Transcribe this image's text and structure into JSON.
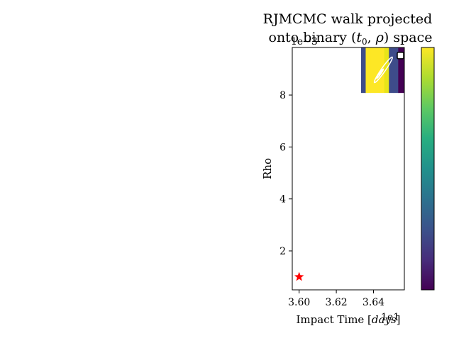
{
  "chart_data": {
    "type": "heatmap",
    "title_line1": "RJMCMC walk projected",
    "title_line2_prefix": "onto binary (",
    "title_line2_t": "t",
    "title_line2_sub": "0",
    "title_line2_mid": ", ",
    "title_line2_rho": "ρ",
    "title_line2_suffix": ") space",
    "xlabel_prefix": "Impact Time [",
    "xlabel_unit": "days",
    "xlabel_suffix": "]",
    "ylabel": "Rho",
    "x_offset_label": "1e1",
    "y_offset_label": "1e−3",
    "xlim": [
      3.5963,
      3.6566
    ],
    "ylim": [
      0.5,
      9.83
    ],
    "x_ticks": [
      3.6,
      3.62,
      3.64
    ],
    "x_tick_labels": [
      "3.60",
      "3.62",
      "3.64"
    ],
    "y_ticks": [
      2,
      4,
      6,
      8
    ],
    "y_tick_labels": [
      "2",
      "4",
      "6",
      "8"
    ],
    "heatmap_cells": [
      {
        "x0": 3.6333,
        "x1": 3.6358,
        "y0": 8.08,
        "y1": 9.83,
        "color": "#3e4c8a"
      },
      {
        "x0": 3.6358,
        "x1": 3.6383,
        "y0": 8.08,
        "y1": 9.83,
        "color": "#fde725"
      },
      {
        "x0": 3.6383,
        "x1": 3.6408,
        "y0": 8.08,
        "y1": 9.83,
        "color": "#fde725"
      },
      {
        "x0": 3.6408,
        "x1": 3.6433,
        "y0": 8.08,
        "y1": 9.83,
        "color": "#fde725"
      },
      {
        "x0": 3.6433,
        "x1": 3.6458,
        "y0": 8.08,
        "y1": 9.83,
        "color": "#fde725"
      },
      {
        "x0": 3.6458,
        "x1": 3.6483,
        "y0": 8.08,
        "y1": 9.83,
        "color": "#e8e419"
      },
      {
        "x0": 3.6483,
        "x1": 3.6508,
        "y0": 8.08,
        "y1": 9.83,
        "color": "#3e4c8a"
      },
      {
        "x0": 3.6508,
        "x1": 3.6533,
        "y0": 8.08,
        "y1": 9.83,
        "color": "#3e4c8a"
      },
      {
        "x0": 3.6533,
        "x1": 3.6566,
        "y0": 8.08,
        "y1": 9.83,
        "color": "#440154"
      }
    ],
    "contours": [
      {
        "cx": 3.6453,
        "cy": 8.97,
        "rx": 0.0011,
        "ry": 0.6,
        "color": "#ffffff"
      },
      {
        "cx": 3.6435,
        "cy": 8.82,
        "rx": 0.0004,
        "ry": 0.22,
        "color": "#ffffff"
      },
      {
        "cx": 3.6438,
        "cy": 8.85,
        "rx": 0.00018,
        "ry": 0.1,
        "color": "#ffffff"
      }
    ],
    "true_marker": {
      "x": 3.6,
      "y": 1.0,
      "shape": "star",
      "color": "#ff0000"
    },
    "current_marker": {
      "x": 3.6545,
      "y": 9.52,
      "shape": "square",
      "color": "#ffffff"
    },
    "colorbar": {
      "cmap": "viridis",
      "ticks": []
    },
    "grid": false
  }
}
